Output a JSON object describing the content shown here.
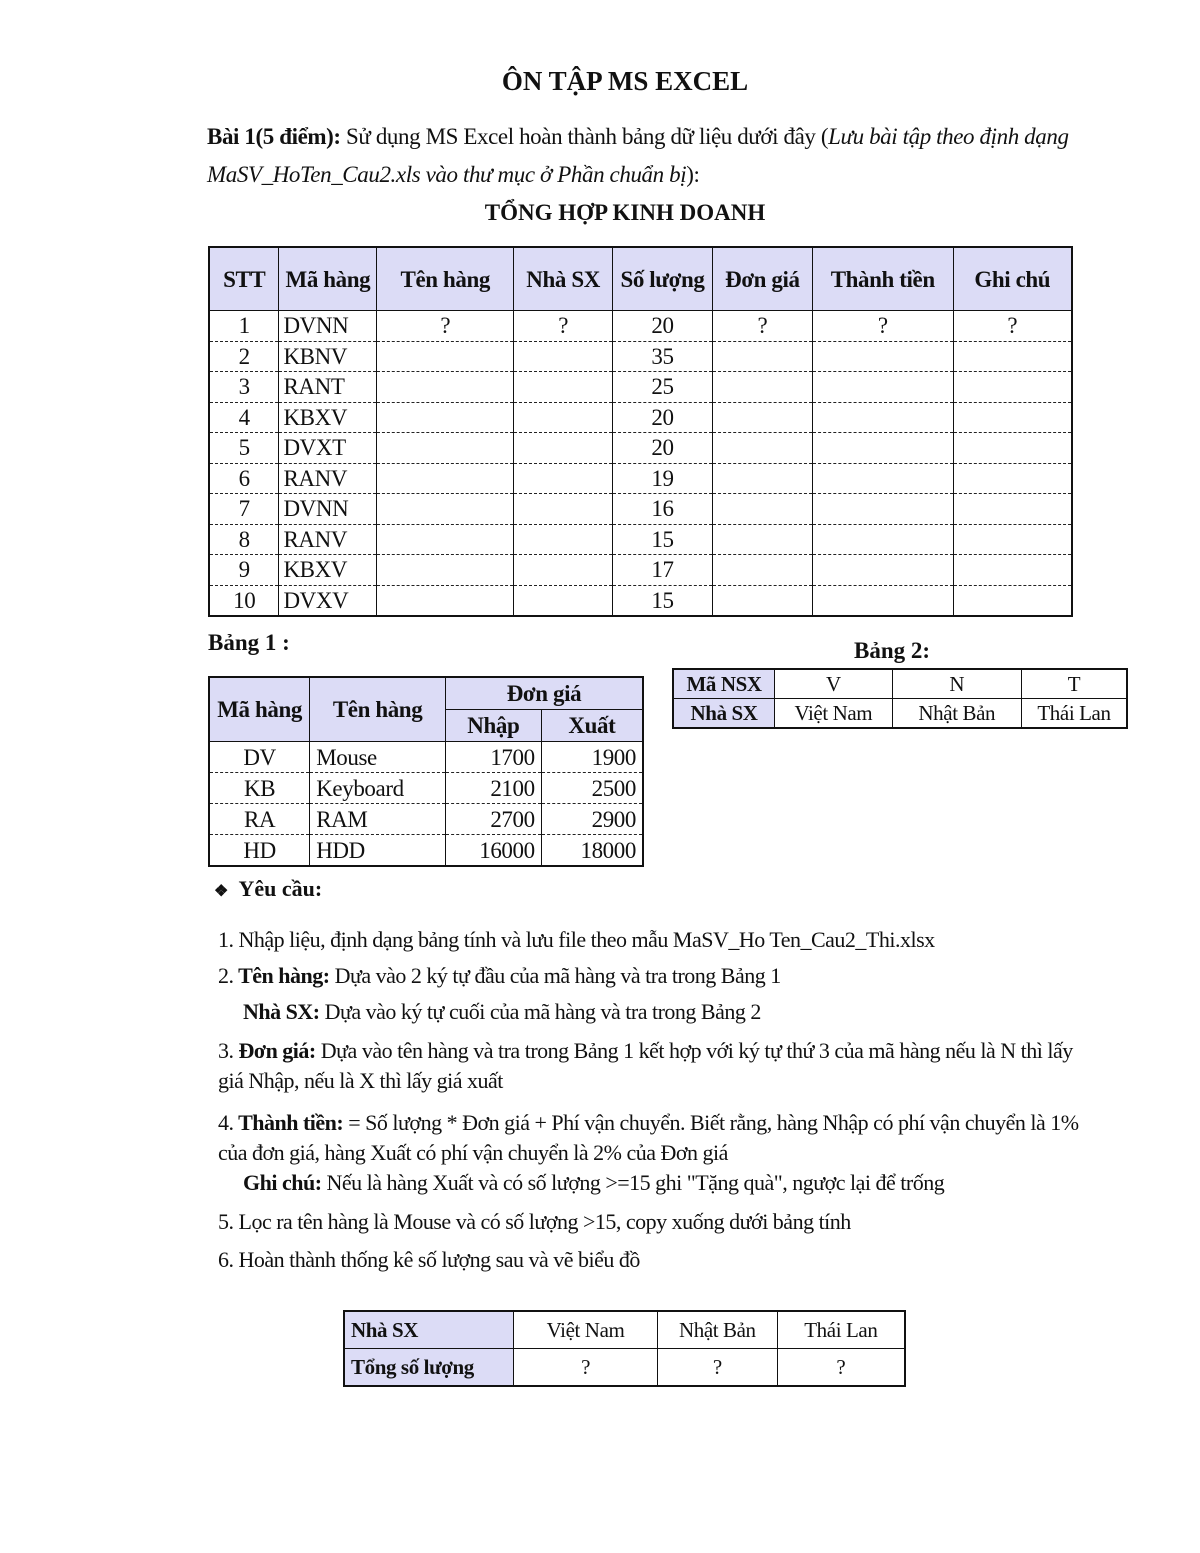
{
  "title": "ÔN TẬP MS EXCEL",
  "intro": {
    "bold": "Bài 1(5 điểm):",
    "text": " Sử dụng MS Excel hoàn thành bảng dữ liệu dưới đây (",
    "italic": "Lưu bài tập theo định dạng MaSV_HoTen_Cau2.xls vào thư mục ở Phần chuẩn bị",
    "end": "):"
  },
  "main_table": {
    "title": "TỔNG HỢP KINH DOANH",
    "headers": [
      "STT",
      "Mã hàng",
      "Tên hàng",
      "Nhà SX",
      "Số lượng",
      "Đơn giá",
      "Thành tiền",
      "Ghi chú"
    ],
    "rows": [
      [
        "1",
        "DVNN",
        "?",
        "?",
        "20",
        "?",
        "?",
        "?"
      ],
      [
        "2",
        "KBNV",
        "",
        "",
        "35",
        "",
        "",
        ""
      ],
      [
        "3",
        "RANT",
        "",
        "",
        "25",
        "",
        "",
        ""
      ],
      [
        "4",
        "KBXV",
        "",
        "",
        "20",
        "",
        "",
        ""
      ],
      [
        "5",
        "DVXT",
        "",
        "",
        "20",
        "",
        "",
        ""
      ],
      [
        "6",
        "RANV",
        "",
        "",
        "19",
        "",
        "",
        ""
      ],
      [
        "7",
        "DVNN",
        "",
        "",
        "16",
        "",
        "",
        ""
      ],
      [
        "8",
        "RANV",
        "",
        "",
        "15",
        "",
        "",
        ""
      ],
      [
        "9",
        "KBXV",
        "",
        "",
        "17",
        "",
        "",
        ""
      ],
      [
        "10",
        "DVXV",
        "",
        "",
        "15",
        "",
        "",
        ""
      ]
    ]
  },
  "bang1": {
    "label": "Bảng 1 :",
    "headers": {
      "ma": "Mã hàng",
      "ten": "Tên hàng",
      "dongia": "Đơn giá",
      "nhap": "Nhập",
      "xuat": "Xuất"
    },
    "rows": [
      [
        "DV",
        "Mouse",
        "1700",
        "1900"
      ],
      [
        "KB",
        "Keyboard",
        "2100",
        "2500"
      ],
      [
        "RA",
        "RAM",
        "2700",
        "2900"
      ],
      [
        "HD",
        "HDD",
        "16000",
        "18000"
      ]
    ]
  },
  "bang2": {
    "label": "Bảng 2:",
    "row1": [
      "Mã NSX",
      "V",
      "N",
      "T"
    ],
    "row2": [
      "Nhà SX",
      "Việt Nam",
      "Nhật Bản",
      "Thái Lan"
    ]
  },
  "requirements": {
    "heading": "Yêu cầu:",
    "bullet_icon": "four-diamond-bullet",
    "items": [
      {
        "num": "1.",
        "bold": "",
        "text": " Nhập liệu, định dạng bảng tính và lưu file theo mẫu MaSV_Ho Ten_Cau2_Thi.xlsx"
      },
      {
        "num": "2.",
        "bold": " Tên hàng:",
        "text": " Dựa vào 2 ký tự đầu của mã hàng và tra trong Bảng 1"
      },
      {
        "num": "",
        "bold": "Nhà SX:",
        "text": " Dựa vào ký tự cuối của mã hàng và tra trong Bảng 2"
      },
      {
        "num": "3.",
        "bold": " Đơn giá:",
        "text": " Dựa vào tên hàng và tra trong Bảng 1 kết hợp với ký tự thứ 3 của mã hàng nếu là N thì lấy giá Nhập, nếu là X thì lấy giá xuất"
      },
      {
        "num": "4.",
        "bold": " Thành tiền:",
        "text": " = Số lượng * Đơn giá + Phí vận chuyển. Biết rằng, hàng Nhập có phí vận chuyển là 1% của đơn giá, hàng Xuất có phí vận chuyển là 2% của Đơn giá"
      },
      {
        "num": "",
        "bold": "Ghi chú:",
        "text": " Nếu là hàng Xuất và có số lượng >=15 ghi \"Tặng quà\", ngược lại để trống"
      },
      {
        "num": "5.",
        "bold": "",
        "text": " Lọc ra tên hàng là Mouse và có số lượng >15, copy xuống dưới bảng tính"
      },
      {
        "num": "6.",
        "bold": "",
        "text": " Hoàn thành thống kê số lượng sau và vẽ biểu đồ"
      }
    ]
  },
  "summary_table": {
    "row1": [
      "Nhà SX",
      "Việt Nam",
      "Nhật Bản",
      "Thái Lan"
    ],
    "row2": [
      "Tổng số lượng",
      "?",
      "?",
      "?"
    ]
  }
}
